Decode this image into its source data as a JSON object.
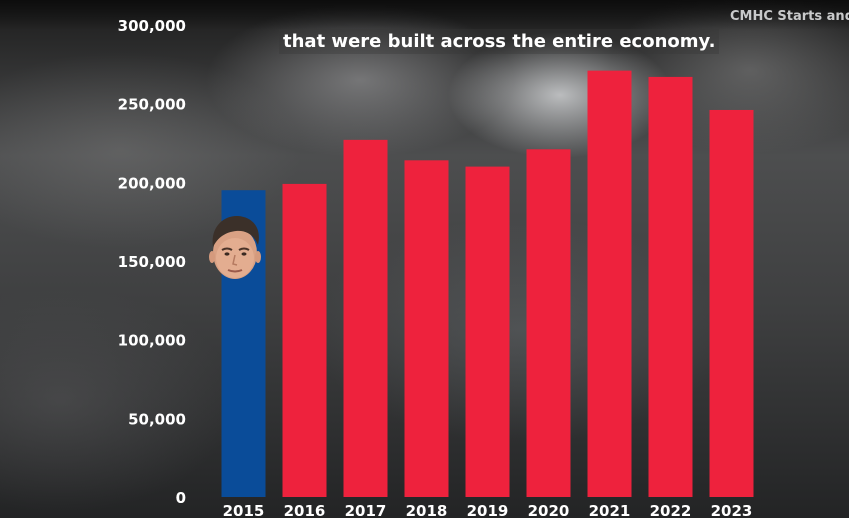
{
  "source_label": "CMHC Starts and C",
  "caption": "that were built across the entire economy.",
  "colors": {
    "highlight": "#0a4c99",
    "bars": "#ee223d"
  },
  "portrait_icon": "politician-face-icon",
  "chart_data": {
    "type": "bar",
    "categories": [
      "2015",
      "2016",
      "2017",
      "2018",
      "2019",
      "2020",
      "2021",
      "2022",
      "2023"
    ],
    "values": [
      195000,
      199000,
      227000,
      214000,
      210000,
      221000,
      271000,
      267000,
      246000
    ],
    "highlight_category": "2015",
    "ylim": [
      0,
      300000
    ],
    "yticks": [
      "0",
      "50,000",
      "100,000",
      "150,000",
      "200,000",
      "250,000",
      "300,000"
    ],
    "ytick_values": [
      0,
      50000,
      100000,
      150000,
      200000,
      250000,
      300000
    ],
    "grid": false,
    "title": "",
    "xlabel": "",
    "ylabel": ""
  }
}
